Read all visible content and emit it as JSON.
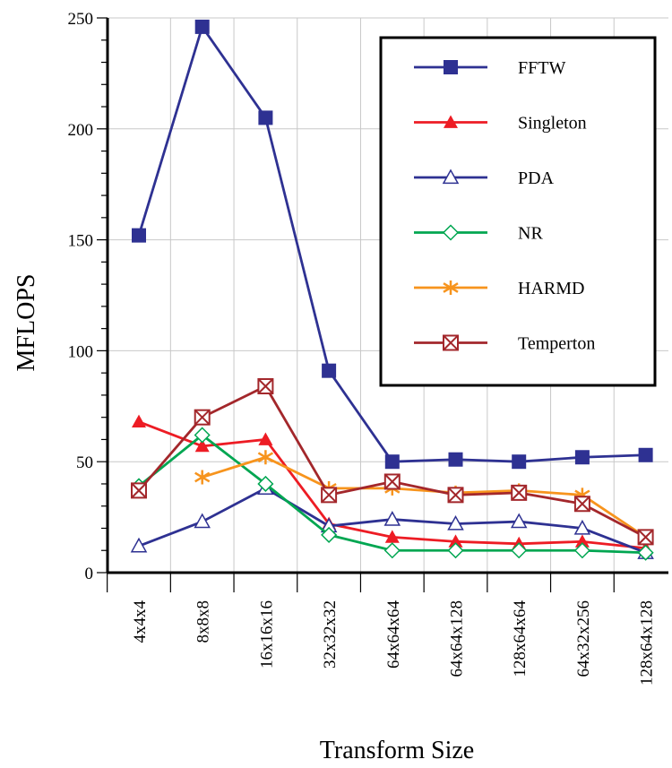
{
  "chart_data": {
    "type": "line",
    "xlabel": "Transform Size",
    "ylabel": "MFLOPS",
    "ylim": [
      0,
      250
    ],
    "yticks": [
      0,
      50,
      100,
      150,
      200,
      250
    ],
    "categories": [
      "4x4x4",
      "8x8x8",
      "16x16x16",
      "32x32x32",
      "64x64x64",
      "64x64x128",
      "128x64x64",
      "64x32x256",
      "128x64x128"
    ],
    "grid": true,
    "legend_position": "top-right",
    "series": [
      {
        "name": "FFTW",
        "color": "#2e3192",
        "marker": "filled-square",
        "values": [
          152,
          246,
          205,
          91,
          50,
          51,
          50,
          52,
          53
        ]
      },
      {
        "name": "Singleton",
        "color": "#ed1c24",
        "marker": "filled-triangle",
        "values": [
          68,
          57,
          60,
          22,
          16,
          14,
          13,
          14,
          11
        ]
      },
      {
        "name": "PDA",
        "color": "#2e3192",
        "marker": "open-triangle",
        "values": [
          12,
          23,
          38,
          21,
          24,
          22,
          23,
          20,
          9
        ]
      },
      {
        "name": "NR",
        "color": "#00a651",
        "marker": "open-diamond",
        "values": [
          39,
          62,
          40,
          17,
          10,
          10,
          10,
          10,
          9
        ]
      },
      {
        "name": "HARMD",
        "color": "#f7941d",
        "marker": "asterisk",
        "values": [
          null,
          43,
          52,
          38,
          38,
          36,
          37,
          35,
          16
        ]
      },
      {
        "name": "Temperton",
        "color": "#a3272b",
        "marker": "crossed-square",
        "values": [
          37,
          70,
          84,
          35,
          41,
          35,
          36,
          31,
          16
        ]
      }
    ]
  }
}
